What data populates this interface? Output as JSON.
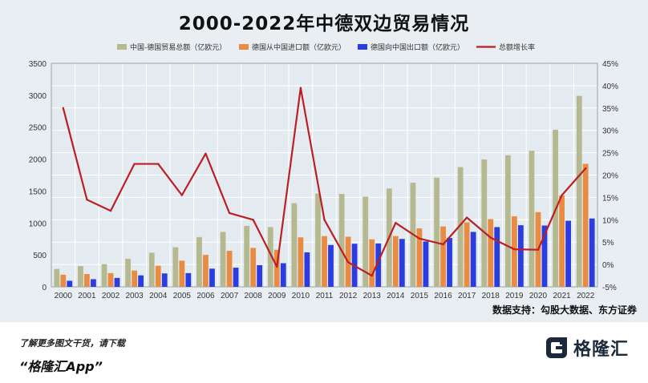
{
  "title": "2000-2022年中德双边贸易情况",
  "source": "数据支持：勾股大数据、东方证券",
  "footer": {
    "promo": "了解更多图文干货，请下载",
    "app_name": "“格隆汇App”",
    "logo_text": "格隆汇",
    "logo_icon": "glh-logo-icon"
  },
  "chart_data": {
    "type": "bar",
    "categories": [
      "2000",
      "2001",
      "2002",
      "2003",
      "2004",
      "2005",
      "2006",
      "2007",
      "2008",
      "2009",
      "2010",
      "2011",
      "2012",
      "2013",
      "2014",
      "2015",
      "2016",
      "2017",
      "2018",
      "2019",
      "2020",
      "2021",
      "2022"
    ],
    "series": [
      {
        "name": "中国-德国贸易总额（亿欧元）",
        "kind": "bar",
        "axis": "left",
        "color": "#b6b88f",
        "values": [
          280,
          325,
          355,
          440,
          535,
          620,
          780,
          860,
          955,
          935,
          1310,
          1460,
          1455,
          1410,
          1540,
          1630,
          1710,
          1875,
          1995,
          2060,
          2130,
          2460,
          2990
        ]
      },
      {
        "name": "德国从中国进口额（亿欧元）",
        "kind": "bar",
        "axis": "left",
        "color": "#ea8b44",
        "values": [
          190,
          200,
          215,
          255,
          330,
          410,
          500,
          565,
          610,
          580,
          775,
          795,
          785,
          745,
          795,
          915,
          945,
          1010,
          1060,
          1105,
          1170,
          1430,
          1925
        ]
      },
      {
        "name": "德国向中国出口额（亿欧元）",
        "kind": "bar",
        "axis": "left",
        "color": "#2b3ddf",
        "values": [
          95,
          120,
          140,
          180,
          210,
          215,
          285,
          300,
          340,
          370,
          540,
          655,
          675,
          680,
          750,
          710,
          765,
          860,
          935,
          965,
          960,
          1035,
          1070
        ]
      },
      {
        "name": "总额增长率",
        "kind": "line",
        "axis": "right",
        "color": "#bb1f24",
        "values": [
          35,
          14.5,
          12,
          22.5,
          22.5,
          15.5,
          24.8,
          11.5,
          10,
          -0.5,
          39.5,
          10,
          0.5,
          -2.5,
          9.3,
          5.8,
          4.5,
          10.5,
          6,
          3.4,
          3.3,
          15.5,
          21.5
        ]
      }
    ],
    "ylim_left": [
      0,
      3500
    ],
    "yticks_left": [
      0,
      500,
      1000,
      1500,
      2000,
      2500,
      3000,
      3500
    ],
    "ylim_right": [
      -5,
      45
    ],
    "yticks_right": [
      "-5%",
      "0%",
      "5%",
      "10%",
      "15%",
      "20%",
      "25%",
      "30%",
      "35%",
      "40%",
      "45%"
    ],
    "grid": true,
    "legend_position": "top"
  }
}
